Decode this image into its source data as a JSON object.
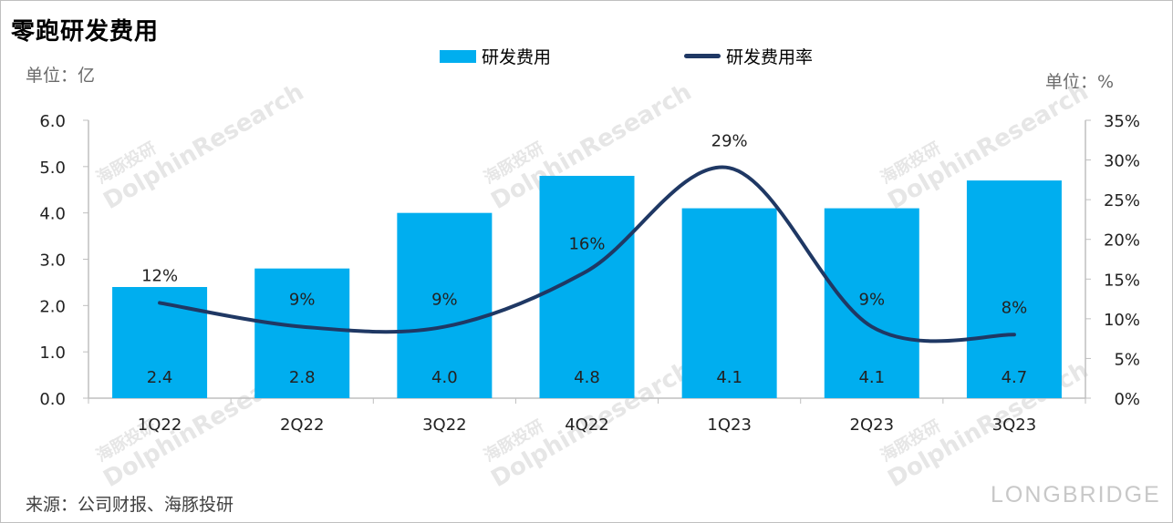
{
  "title": "零跑研发费用",
  "unit_left": "单位：亿",
  "unit_right": "单位：%",
  "source": "来源：公司财报、海豚投研",
  "watermark_text": "DolphinResearch",
  "watermark_cn": "海豚投研",
  "brand": "LONGBRIDGE",
  "colors": {
    "bar": "#00aeef",
    "line": "#1f3864",
    "axis": "#bfbfbf"
  },
  "chart_data": {
    "type": "bar",
    "categories": [
      "1Q22",
      "2Q22",
      "3Q22",
      "4Q22",
      "1Q23",
      "2Q23",
      "3Q23"
    ],
    "series": [
      {
        "name": "研发费用",
        "type": "bar",
        "axis": "left",
        "values": [
          2.4,
          2.8,
          4.0,
          4.8,
          4.1,
          4.1,
          4.7
        ],
        "labels": [
          "2.4",
          "2.8",
          "4.0",
          "4.8",
          "4.1",
          "4.1",
          "4.7"
        ]
      },
      {
        "name": "研发费用率",
        "type": "line",
        "axis": "right",
        "values": [
          12,
          9,
          9,
          16,
          29,
          9,
          8
        ],
        "labels": [
          "12%",
          "9%",
          "9%",
          "16%",
          "29%",
          "9%",
          "8%"
        ]
      }
    ],
    "y_left": {
      "ylim": [
        0,
        6
      ],
      "ticks": [
        "0.0",
        "1.0",
        "2.0",
        "3.0",
        "4.0",
        "5.0",
        "6.0"
      ]
    },
    "y_right": {
      "ylim": [
        0,
        35
      ],
      "ticks": [
        "0%",
        "5%",
        "10%",
        "15%",
        "20%",
        "25%",
        "30%",
        "35%"
      ]
    },
    "legend_position": "top-center",
    "grid": false
  }
}
